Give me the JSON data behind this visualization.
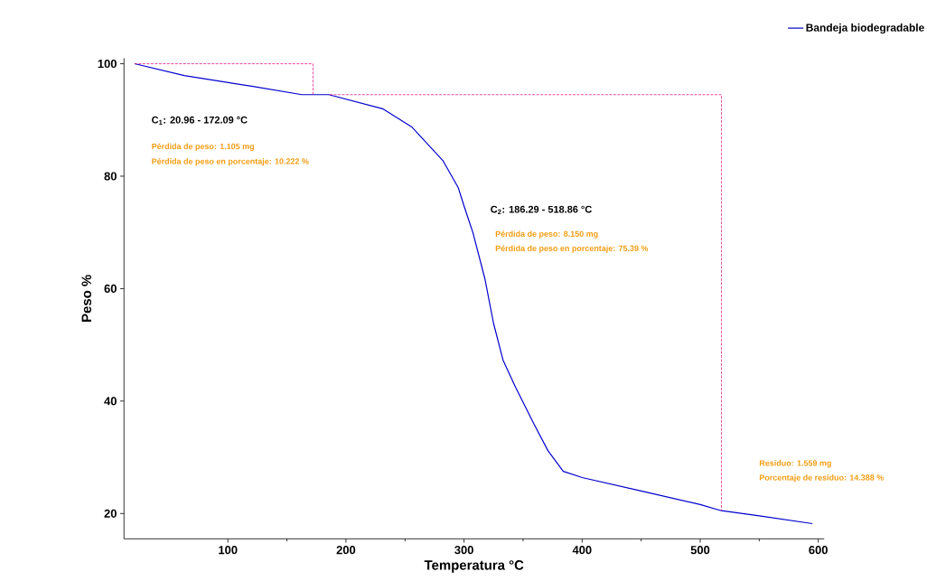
{
  "chart_data": {
    "type": "line",
    "xlabel": "Temperatura °C",
    "ylabel": "Peso %",
    "xlim": [
      12,
      605
    ],
    "ylim": [
      15.5,
      101
    ],
    "xticks": [
      100,
      200,
      300,
      400,
      500,
      600
    ],
    "yticks": [
      20,
      40,
      60,
      80,
      100
    ],
    "grid": false,
    "legend": "top right",
    "marker": "none",
    "series": [
      {
        "name": "Bandeja biodegradable",
        "color": "#0000cc",
        "line_style": "solid",
        "x": [
          20.96,
          63,
          120,
          162.6,
          185.5,
          231,
          256,
          282,
          295,
          300,
          307.6,
          317.6,
          325,
          333,
          343.5,
          359,
          371,
          384,
          400,
          450,
          500,
          518,
          550,
          595
        ],
        "values": [
          100,
          97.9,
          96,
          94.5,
          94.5,
          92,
          88.7,
          82.8,
          78,
          74.7,
          69.9,
          61.8,
          53.8,
          47.3,
          42.5,
          36,
          31.2,
          27.5,
          26.4,
          24,
          21.6,
          20.5,
          19.6,
          18.2
        ]
      },
      {
        "color": "#e0208a",
        "line_style": "dashed",
        "x": [
          20.96,
          172.09,
          172.09
        ],
        "values": [
          100,
          100,
          94.5
        ]
      },
      {
        "color": "#e0208a",
        "line_style": "dashed",
        "x": [
          186.29,
          518,
          518
        ],
        "values": [
          94.5,
          94.5,
          20.5
        ]
      }
    ],
    "annotations": [
      "C$_{1}$: 20.96 - 172.09 °C",
      "Pérdida de peso: 1.105 mg",
      "Pérdida de peso en porcentaje: 10.222 %",
      "C$_{2}$: 186.29 - 518.86 °C",
      "Pérdida de peso: 8.150 mg",
      "Pérdida de peso en porcentaje: 75.39 %",
      "Residuo: 1.559 mg",
      "Porcentaje de residuo: 14.388 %"
    ]
  }
}
